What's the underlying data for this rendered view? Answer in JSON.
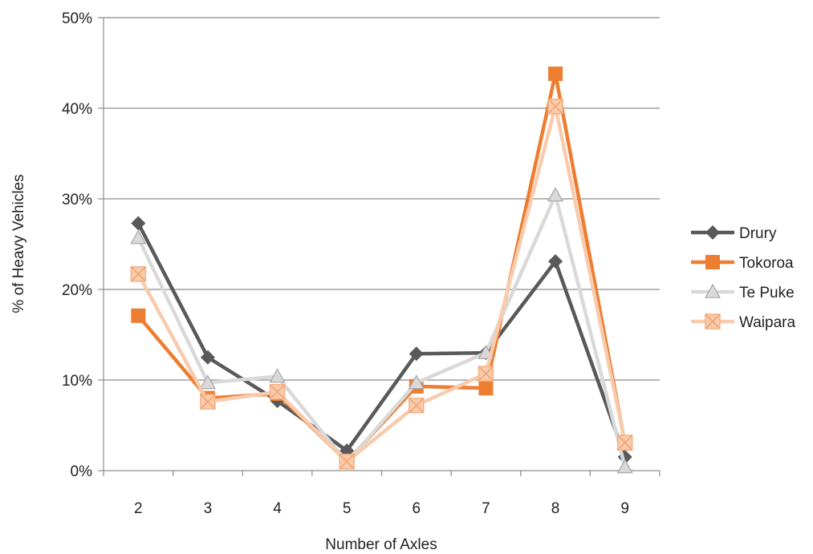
{
  "chart_data": {
    "type": "line",
    "title": "",
    "xlabel": "Number of Axles",
    "ylabel": "% of Heavy Vehicles",
    "categories": [
      "2",
      "3",
      "4",
      "5",
      "6",
      "7",
      "8",
      "9"
    ],
    "ylim": [
      0,
      50
    ],
    "yticks": [
      "0%",
      "10%",
      "20%",
      "30%",
      "40%",
      "50%"
    ],
    "grid": "horizontal",
    "legend_position": "right",
    "series": [
      {
        "name": "Drury",
        "color": "#595959",
        "marker": "diamond",
        "values": [
          27.3,
          12.5,
          7.7,
          2.2,
          12.9,
          13.0,
          23.1,
          1.5
        ]
      },
      {
        "name": "Tokoroa",
        "color": "#ED7D31",
        "marker": "square",
        "values": [
          17.1,
          8.0,
          8.5,
          1.0,
          9.3,
          9.1,
          43.8,
          3.0
        ]
      },
      {
        "name": "Te Puke",
        "color": "#D9D9D9",
        "marker": "triangle",
        "values": [
          25.7,
          9.7,
          10.4,
          0.9,
          9.7,
          13.0,
          30.4,
          0.4
        ]
      },
      {
        "name": "Waipara",
        "color": "#F8CBAD",
        "marker": "x-square",
        "values": [
          21.7,
          7.6,
          8.7,
          1.0,
          7.2,
          10.7,
          40.2,
          3.1
        ]
      }
    ]
  }
}
